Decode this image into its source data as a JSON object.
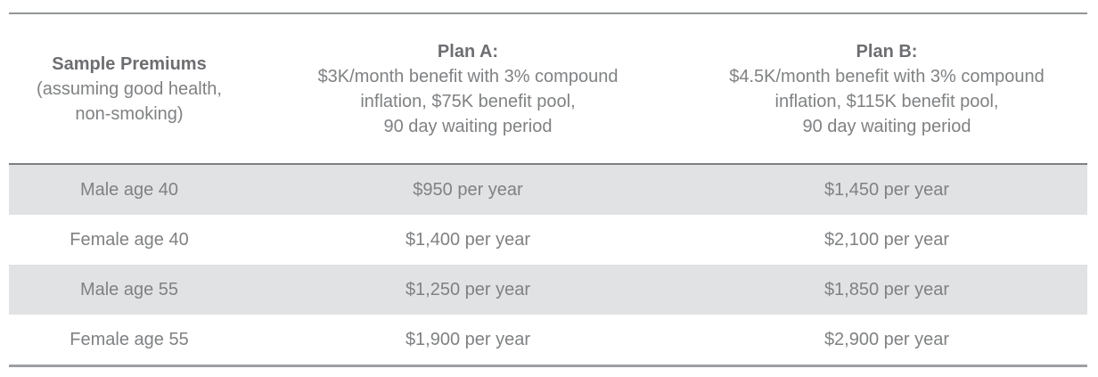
{
  "table": {
    "columns": [
      {
        "title": "Sample Premiums",
        "lines": [
          "(assuming good health,",
          "non-smoking)"
        ]
      },
      {
        "title": "Plan A:",
        "lines": [
          "$3K/month benefit with 3% compound",
          "inflation, $75K benefit pool,",
          "90 day waiting period"
        ]
      },
      {
        "title": "Plan B:",
        "lines": [
          "$4.5K/month benefit with 3% compound",
          "inflation, $115K benefit pool,",
          "90 day waiting period"
        ]
      }
    ],
    "rows": [
      {
        "label": "Male age 40",
        "plan_a": "$950 per year",
        "plan_b": "$1,450 per year"
      },
      {
        "label": "Female age 40",
        "plan_a": "$1,400 per year",
        "plan_b": "$2,100 per year"
      },
      {
        "label": "Male age 55",
        "plan_a": "$1,250 per year",
        "plan_b": "$1,850 per year"
      },
      {
        "label": "Female age 55",
        "plan_a": "$1,900 per year",
        "plan_b": "$2,900 per year"
      }
    ]
  },
  "colors": {
    "shade": "#e1e2e3",
    "text": "#7f8183",
    "text_bold": "#6d6e71",
    "border_top": "#939598",
    "border_mid": "#7c7e81",
    "border_bottom": "#9d9fa2"
  }
}
